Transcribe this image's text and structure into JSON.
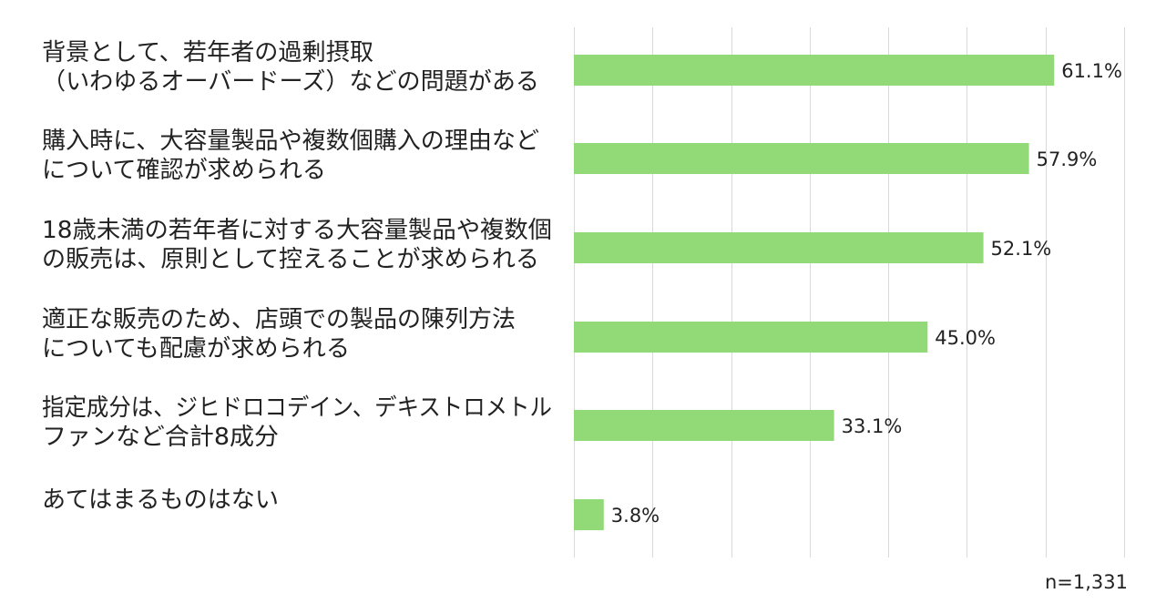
{
  "chart_data": {
    "type": "bar",
    "orientation": "horizontal",
    "categories": [
      [
        "背景として、若年者の過剰摂取",
        "（いわゆるオーバードーズ）などの問題がある"
      ],
      [
        "購入時に、大容量製品や複数個購入の理由など",
        "について確認が求められる"
      ],
      [
        "18歳未満の若年者に対する大容量製品や複数個",
        "の販売は、原則として控えることが求められる"
      ],
      [
        "適正な販売のため、店頭での製品の陳列方法",
        "についても配慮が求められる"
      ],
      [
        "指定成分は、ジヒドロコデイン、デキストロメトル",
        "ファンなど合計8成分"
      ],
      [
        "あてはまるものはない"
      ]
    ],
    "values": [
      61.1,
      57.9,
      52.1,
      45.0,
      33.1,
      3.8
    ],
    "value_labels": [
      "61.1%",
      "57.9%",
      "52.1%",
      "45.0%",
      "33.1%",
      "3.8%"
    ],
    "xlim": [
      0,
      70
    ],
    "grid_step": 10,
    "grid": true,
    "bar_color": "#92d977",
    "grid_color": "#d9d9d9",
    "note": "n=1,331"
  }
}
